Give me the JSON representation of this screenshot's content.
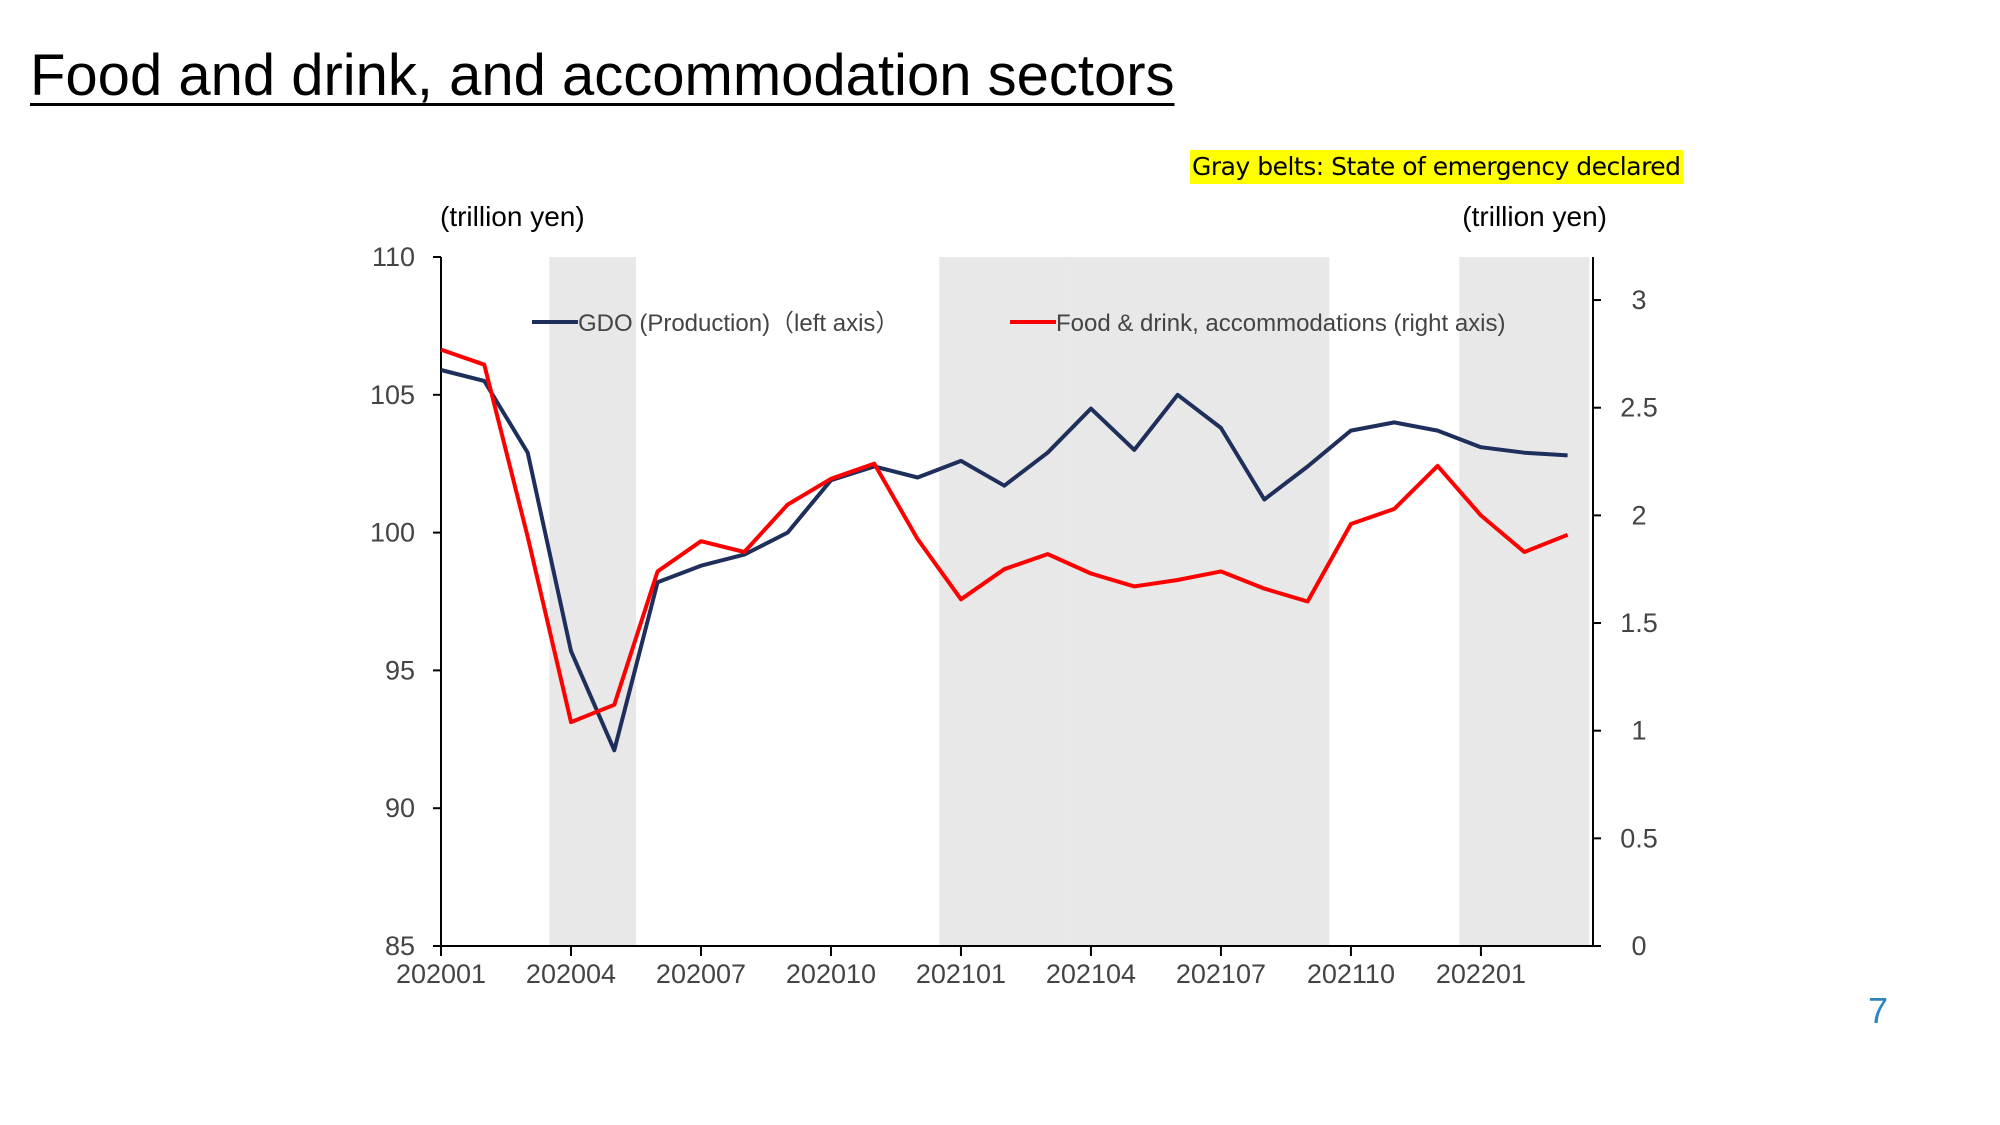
{
  "slide": {
    "title": "Food and drink, and accommodation sectors",
    "note": "Gray belts: State of emergency declared",
    "page_number": "7"
  },
  "colors": {
    "gdo": "#1f2f5c",
    "food": "#ff0000",
    "belt": "#e8e8e8",
    "note_bg": "#ffff00",
    "page_number": "#2e86c1"
  },
  "chart_data": {
    "type": "line",
    "left_unit": "(trillion yen)",
    "right_unit": "(trillion yen)",
    "categories": [
      "202001",
      "202002",
      "202003",
      "202004",
      "202005",
      "202006",
      "202007",
      "202008",
      "202009",
      "202010",
      "202011",
      "202012",
      "202101",
      "202102",
      "202103",
      "202104",
      "202105",
      "202106",
      "202107",
      "202108",
      "202109",
      "202110",
      "202111",
      "202112",
      "202201",
      "202202",
      "202203"
    ],
    "x_tick_labels": [
      "202001",
      "202004",
      "202007",
      "202010",
      "202101",
      "202104",
      "202107",
      "202110",
      "202201"
    ],
    "left_axis": {
      "min": 85,
      "max": 110,
      "ticks": [
        85,
        90,
        95,
        100,
        105,
        110
      ]
    },
    "right_axis": {
      "min": 0,
      "max": 3.2,
      "ticks": [
        0,
        0.5,
        1,
        1.5,
        2,
        2.5,
        3
      ],
      "tick_labels": [
        "0",
        "0.5",
        "1",
        "1.5",
        "2",
        "2.5",
        "3"
      ]
    },
    "belts": [
      {
        "from": "202004",
        "to": "202005"
      },
      {
        "from": "202101",
        "to": "202103"
      },
      {
        "from": "202104",
        "to": "202109"
      },
      {
        "from": "202201",
        "to": "202203"
      }
    ],
    "series": [
      {
        "name": "GDO (Production)（left axis）",
        "axis": "left",
        "color": "#1f2f5c",
        "values": [
          105.9,
          105.5,
          102.9,
          95.7,
          92.1,
          98.2,
          98.8,
          99.2,
          100.0,
          101.9,
          102.4,
          102.0,
          102.6,
          101.7,
          102.9,
          104.5,
          103.0,
          105.0,
          103.8,
          101.2,
          102.4,
          103.7,
          104.0,
          103.7,
          103.1,
          102.9,
          102.8
        ]
      },
      {
        "name": "Food & drink, accommodations (right axis)",
        "axis": "right",
        "color": "#ff0000",
        "values": [
          2.77,
          2.7,
          1.9,
          1.04,
          1.12,
          1.74,
          1.88,
          1.83,
          2.05,
          2.17,
          2.24,
          1.89,
          1.61,
          1.75,
          1.82,
          1.73,
          1.67,
          1.7,
          1.74,
          1.66,
          1.6,
          1.96,
          2.03,
          2.23,
          2.0,
          1.83,
          1.91
        ]
      }
    ]
  }
}
